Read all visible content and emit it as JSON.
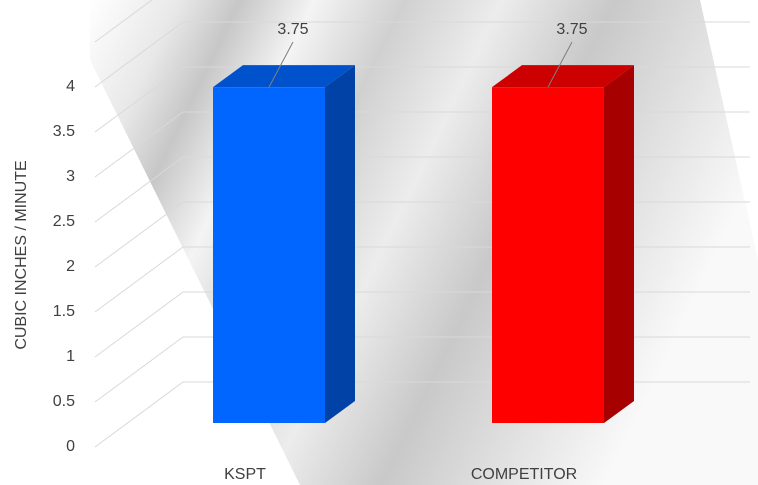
{
  "chart_data": {
    "type": "bar3d",
    "ylabel": "CUBIC INCHES / MINUTE",
    "categories": [
      "KSPT",
      "COMPETITOR"
    ],
    "values": [
      3.75,
      3.75
    ],
    "colors": [
      "#0066ff",
      "#ff0000"
    ],
    "ylim": [
      0,
      4.5
    ],
    "yticks": [
      0,
      0.5,
      1,
      1.5,
      2,
      2.5,
      3,
      3.5,
      4
    ],
    "grid": true
  }
}
